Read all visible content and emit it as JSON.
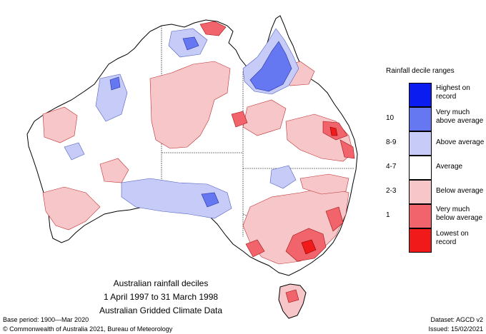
{
  "title_block": {
    "line1": "Australian rainfall deciles",
    "line2": "1 April 1997 to 31 March 1998",
    "line3": "Australian Gridded Climate Data"
  },
  "legend": {
    "title": "Rainfall decile ranges",
    "items": [
      {
        "decile": "",
        "label": "Highest on record",
        "color": "#0a1cf0"
      },
      {
        "decile": "10",
        "label": "Very much above average",
        "color": "#6677f2"
      },
      {
        "decile": "8-9",
        "label": "Above average",
        "color": "#c6cbf7"
      },
      {
        "decile": "4-7",
        "label": "Average",
        "color": "#ffffff"
      },
      {
        "decile": "2-3",
        "label": "Below average",
        "color": "#f7c6c8"
      },
      {
        "decile": "1",
        "label": "Very much below average",
        "color": "#f2646c"
      },
      {
        "decile": "",
        "label": "Lowest on record",
        "color": "#f01a1a"
      }
    ]
  },
  "footer": {
    "base_period": "Base period: 1900—Mar 2020",
    "copyright": "© Commonwealth of Australia 2021, Bureau of Meteorology",
    "dataset": "Dataset: AGCD v2",
    "issued": "Issued: 15/02/2021"
  }
}
